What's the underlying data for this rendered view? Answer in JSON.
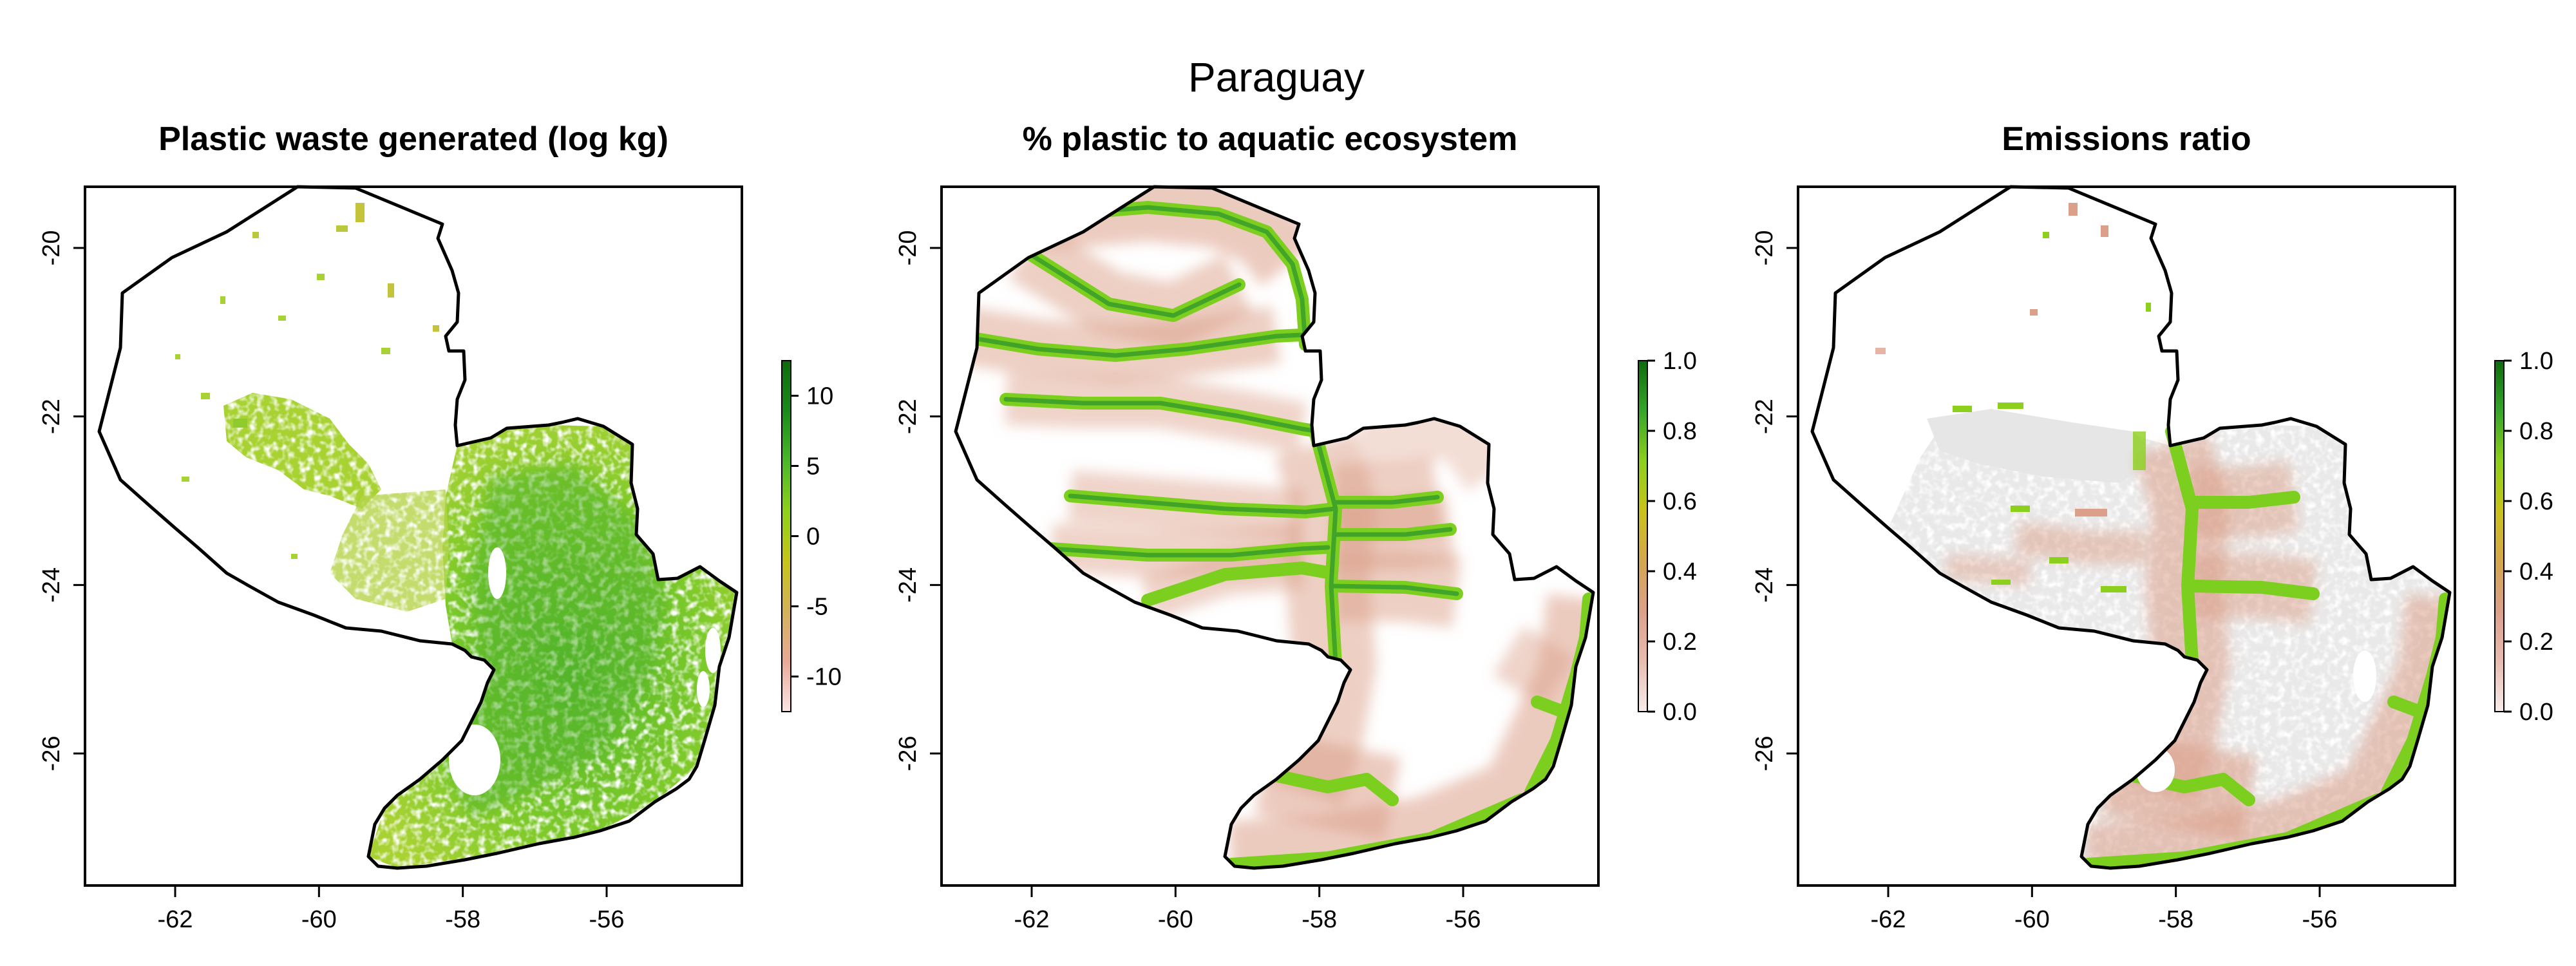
{
  "figure": {
    "title": "Paraguay"
  },
  "panels": [
    {
      "id": "waste",
      "title": "Plastic waste generated (log kg)",
      "x_ticks": [
        "-62",
        "-60",
        "-58",
        "-56"
      ],
      "y_ticks": [
        "-20",
        "-22",
        "-24",
        "-26"
      ],
      "x_tick_values": [
        -62,
        -60,
        -58,
        -56
      ],
      "y_tick_values": [
        -20,
        -22,
        -24,
        -26
      ],
      "colorbar": {
        "range": [
          -12.5,
          12.5
        ],
        "tick_labels": [
          "10",
          "5",
          "0",
          "-5",
          "-10"
        ],
        "tick_values": [
          10,
          5,
          0,
          -5,
          -10
        ],
        "colors": [
          "#fbe6e6",
          "#e8a998",
          "#d4b25a",
          "#c7c41a",
          "#8ed01b",
          "#4bb82a",
          "#1a8a1a",
          "#0d6b0d"
        ]
      }
    },
    {
      "id": "aquatic",
      "title": "% plastic to aquatic ecosystem",
      "x_ticks": [
        "-62",
        "-60",
        "-58",
        "-56"
      ],
      "y_ticks": [
        "-20",
        "-22",
        "-24",
        "-26"
      ],
      "x_tick_values": [
        -62,
        -60,
        -58,
        -56
      ],
      "y_tick_values": [
        -20,
        -22,
        -24,
        -26
      ],
      "colorbar": {
        "range": [
          0,
          1
        ],
        "tick_labels": [
          "1.0",
          "0.8",
          "0.6",
          "0.4",
          "0.2",
          "0.0"
        ],
        "tick_values": [
          1.0,
          0.8,
          0.6,
          0.4,
          0.2,
          0.0
        ],
        "colors": [
          "#f7ecec",
          "#e8bcb0",
          "#dca08a",
          "#d4a64e",
          "#c9c21a",
          "#8ccf1c",
          "#36a52a",
          "#0d6b0d"
        ]
      }
    },
    {
      "id": "emissions",
      "title": "Emissions ratio",
      "x_ticks": [
        "-62",
        "-60",
        "-58",
        "-56"
      ],
      "y_ticks": [
        "-20",
        "-22",
        "-24",
        "-26"
      ],
      "x_tick_values": [
        -62,
        -60,
        -58,
        -56
      ],
      "y_tick_values": [
        -20,
        -22,
        -24,
        -26
      ],
      "colorbar": {
        "range": [
          0,
          1
        ],
        "tick_labels": [
          "1.0",
          "0.8",
          "0.6",
          "0.4",
          "0.2",
          "0.0"
        ],
        "tick_values": [
          1.0,
          0.8,
          0.6,
          0.4,
          0.2,
          0.0
        ],
        "colors": [
          "#f7ecec",
          "#e8bcb0",
          "#dca08a",
          "#d4a64e",
          "#c9c21a",
          "#8ccf1c",
          "#36a52a",
          "#0d6b0d"
        ]
      }
    }
  ],
  "colors": {
    "waste_fill": "#9acd32",
    "waste_fill_dark": "#5fb82a",
    "river": "#7ccf1f",
    "river_core": "#2e9e2a",
    "halo": "#dca08a",
    "emissions_background": "#e9e9e9",
    "border": "#000000"
  }
}
